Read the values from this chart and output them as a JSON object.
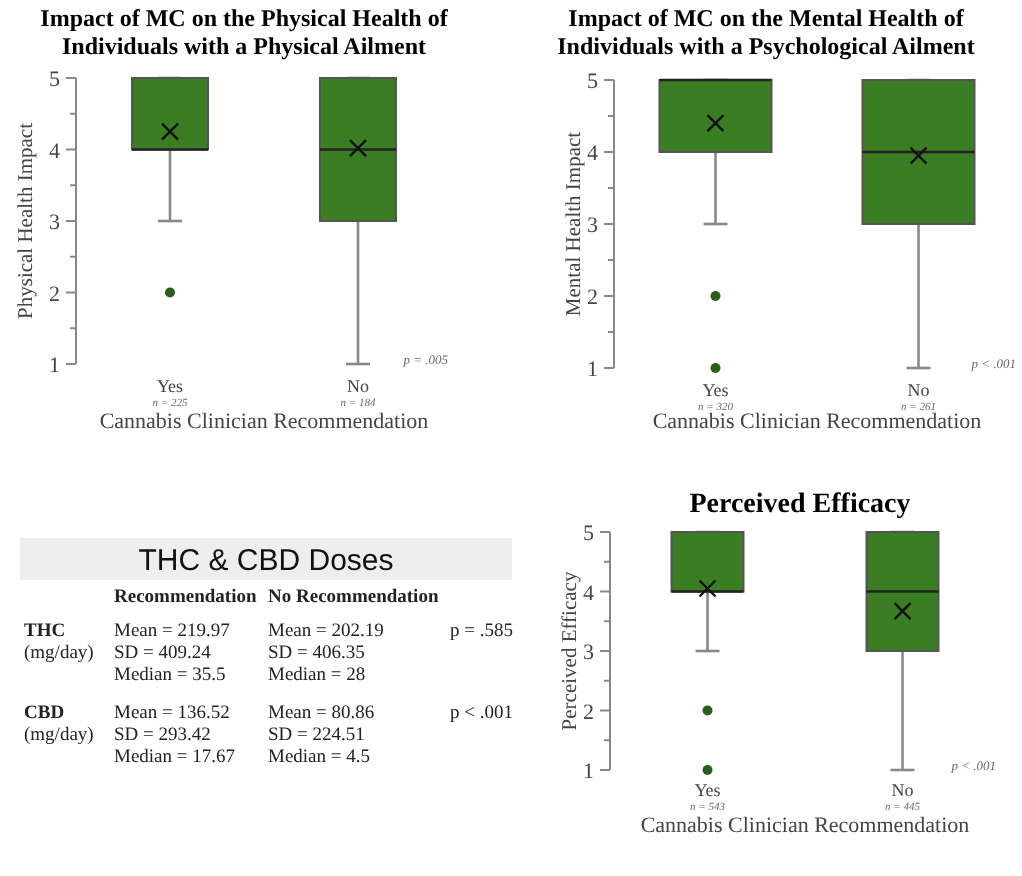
{
  "chart_data": [
    {
      "type": "box",
      "title": "Impact of MC on the Physical Health of Individuals with a Physical Ailment",
      "xlabel": "Cannabis Clinician Recommendation",
      "ylabel": "Physical Health Impact",
      "categories": [
        "Yes",
        "No"
      ],
      "color": "#3b7d23",
      "boxes": [
        {
          "low": 3,
          "q1": 4,
          "median": 4,
          "q3": 5,
          "high": 5,
          "mean": 4.25,
          "outliers": [
            2
          ]
        },
        {
          "low": 1,
          "q1": 3,
          "median": 4,
          "q3": 5,
          "high": 5,
          "mean": 4.02
        }
      ],
      "ylim": [
        1,
        5
      ],
      "yticks": [
        1,
        {
          "value": 1.5,
          "label": null
        },
        2,
        {
          "value": 2.5,
          "label": null
        },
        3,
        {
          "value": 3.5,
          "label": null
        },
        4,
        {
          "value": 4.5,
          "label": null
        },
        5
      ],
      "annotations": [
        "n = 225",
        "n = 184",
        "p = .005"
      ]
    },
    {
      "type": "box",
      "title": "Impact of MC on the Mental Health of Individuals with a Psychological Ailment",
      "xlabel": "Cannabis Clinician Recommendation",
      "ylabel": "Mental Health Impact",
      "categories": [
        "Yes",
        "No"
      ],
      "color": "#3b7d23",
      "boxes": [
        {
          "low": 3,
          "q1": 4,
          "median": 5,
          "q3": 5,
          "high": 5,
          "mean": 4.4,
          "outliers": [
            2,
            1
          ]
        },
        {
          "low": 1,
          "q1": 3,
          "median": 4,
          "q3": 5,
          "high": 5,
          "mean": 3.95
        }
      ],
      "ylim": [
        1,
        5
      ],
      "yticks": [
        1,
        {
          "value": 1.5,
          "label": null
        },
        2,
        {
          "value": 2.5,
          "label": null
        },
        3,
        {
          "value": 3.5,
          "label": null
        },
        4,
        {
          "value": 4.5,
          "label": null
        },
        5
      ],
      "annotations": [
        "n = 320",
        "n = 261",
        "p < .001"
      ]
    },
    {
      "type": "other",
      "title": "THC & CBD Doses",
      "annotations": [
        "Recommendation",
        "No Recommendation",
        "THC",
        "(mg/day)",
        "Mean = 219.97",
        "SD = 409.24",
        "Median = 35.5",
        "Mean = 202.19",
        "SD = 406.35",
        "Median = 28",
        "p = .585",
        "CBD",
        "(mg/day)",
        "Mean = 136.52",
        "SD = 293.42",
        "Median = 17.67",
        "Mean = 80.86",
        "SD = 224.51",
        "Median = 4.5",
        "p < .001"
      ]
    },
    {
      "type": "box",
      "title": "Perceived Efficacy",
      "xlabel": "Cannabis Clinician Recommendation",
      "ylabel": "Perceived Efficacy",
      "categories": [
        "Yes",
        "No"
      ],
      "color": "#3b7d23",
      "boxes": [
        {
          "low": 3,
          "q1": 4,
          "median": 4,
          "q3": 5,
          "high": 5,
          "mean": 4.05,
          "outliers": [
            2,
            1
          ]
        },
        {
          "low": 1,
          "q1": 3,
          "median": 4,
          "q3": 5,
          "high": 5,
          "mean": 3.67
        }
      ],
      "ylim": [
        1,
        5
      ],
      "yticks": [
        1,
        {
          "value": 1.5,
          "label": null
        },
        2,
        {
          "value": 2.5,
          "label": null
        },
        3,
        {
          "value": 3.5,
          "label": null
        },
        4,
        {
          "value": 4.5,
          "label": null
        },
        5
      ],
      "annotations": [
        "n = 543",
        "n = 445",
        "p < .001"
      ]
    }
  ]
}
